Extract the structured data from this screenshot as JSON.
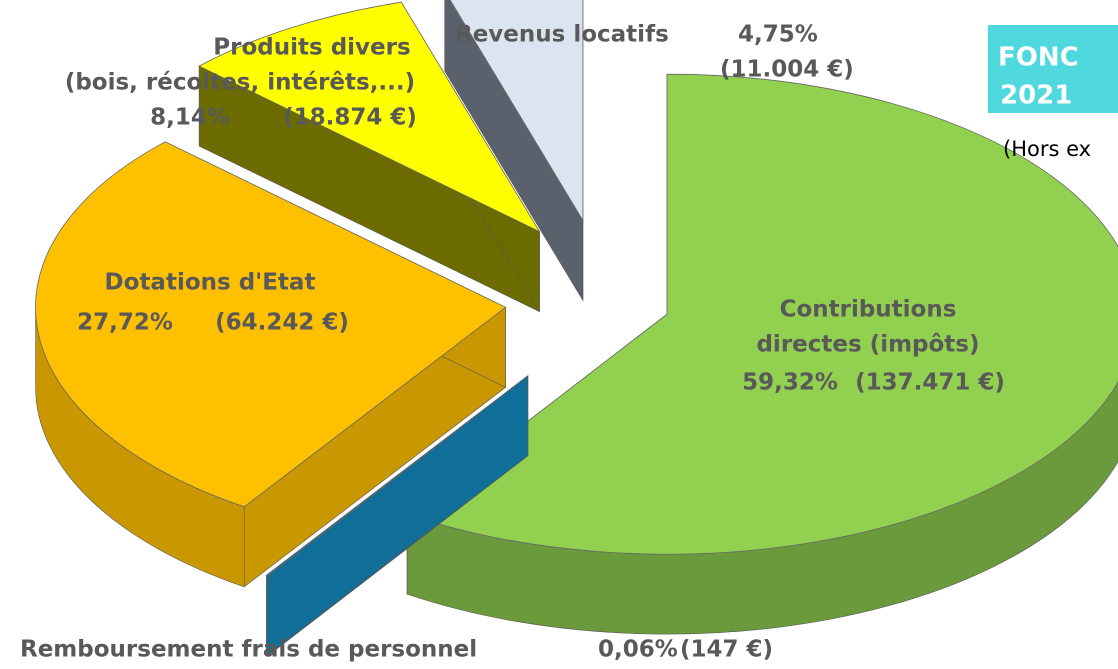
{
  "chart_data": {
    "type": "pie3d",
    "categories": [
      [
        "Contributions",
        "directes (impôts)"
      ],
      [
        "Remboursement frais de personnel"
      ],
      [
        "Dotations d'Etat"
      ],
      [
        "Produits divers",
        "(bois, récoltes, intérêts,...)"
      ],
      [
        "Revenus locatifs"
      ]
    ],
    "values": [
      59.32,
      0.06,
      27.72,
      8.14,
      4.75
    ],
    "value_labels": [
      "59,32%",
      "0,06%",
      "27,72%",
      "8,14%",
      "4,75%"
    ],
    "amounts": [
      137471,
      147,
      64242,
      18874,
      11004
    ],
    "amount_labels": [
      "(137.471 €)",
      "(147 €)",
      "(64.242 €)",
      "(18.874 €)",
      "(11.004 €)"
    ],
    "colors": [
      "#92d050",
      "#0f6f99",
      "#ffc000",
      "#ffff00",
      "#dbe5f1"
    ],
    "side_colors": [
      "#6b9a3c",
      "#0f6f99",
      "#c99800",
      "#6b6b00",
      "#5a616c"
    ],
    "header": {
      "lines": [
        "FONC",
        "2021"
      ],
      "note": "(Hors ex"
    }
  }
}
